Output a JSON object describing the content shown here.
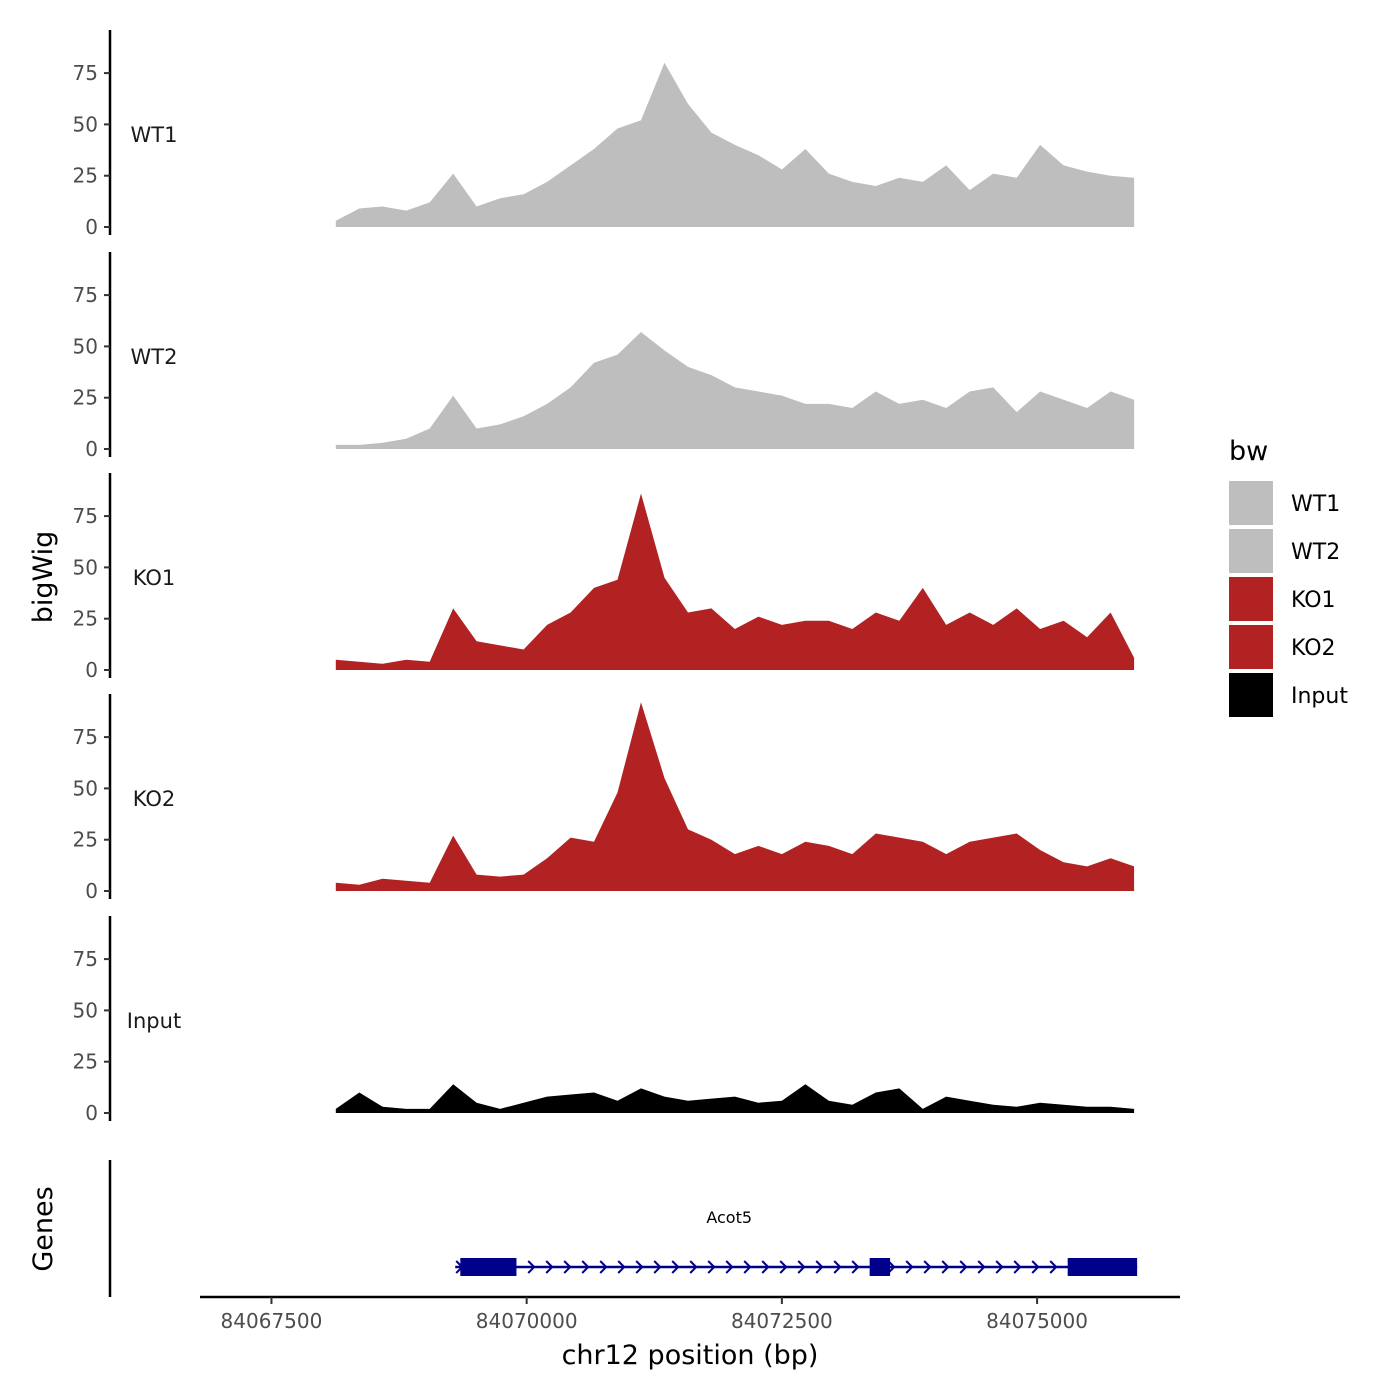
{
  "chart_data": {
    "type": "area",
    "ylabel": "bigWig",
    "xlabel": "chr12 position (bp)",
    "xlim": [
      84066800,
      84076400
    ],
    "ylim": [
      0,
      96
    ],
    "y_ticks": [
      0,
      25,
      50,
      75
    ],
    "x_ticks": [
      84067500,
      84070000,
      84072500,
      84075000
    ],
    "x_tick_labels": [
      "84067500",
      "84070000",
      "84072500",
      "84075000"
    ],
    "legend": {
      "title": "bw",
      "position": "right",
      "entries": [
        {
          "label": "WT1",
          "color": "#bebebe"
        },
        {
          "label": "WT2",
          "color": "#bebebe"
        },
        {
          "label": "KO1",
          "color": "#b22222"
        },
        {
          "label": "KO2",
          "color": "#b22222"
        },
        {
          "label": "Input",
          "color": "#000000"
        }
      ]
    },
    "x": [
      84068130,
      84068360,
      84068590,
      84068820,
      84069050,
      84069280,
      84069510,
      84069740,
      84069970,
      84070200,
      84070430,
      84070660,
      84070890,
      84071120,
      84071350,
      84071580,
      84071810,
      84072040,
      84072270,
      84072500,
      84072730,
      84072960,
      84073190,
      84073420,
      84073650,
      84073880,
      84074110,
      84074340,
      84074570,
      84074800,
      84075030,
      84075260,
      84075490,
      84075720,
      84075950
    ],
    "series": [
      {
        "name": "WT1",
        "color": "#bebebe",
        "values": [
          3,
          9,
          10,
          8,
          12,
          26,
          10,
          14,
          16,
          22,
          30,
          38,
          48,
          52,
          80,
          60,
          46,
          40,
          35,
          28,
          38,
          26,
          22,
          20,
          24,
          22,
          30,
          18,
          26,
          24,
          40,
          30,
          27,
          25,
          24
        ]
      },
      {
        "name": "WT2",
        "color": "#bebebe",
        "values": [
          2,
          2,
          3,
          5,
          10,
          26,
          10,
          12,
          16,
          22,
          30,
          42,
          46,
          57,
          48,
          40,
          36,
          30,
          28,
          26,
          22,
          22,
          20,
          28,
          22,
          24,
          20,
          28,
          30,
          18,
          28,
          24,
          20,
          28,
          24
        ]
      },
      {
        "name": "KO1",
        "color": "#b22222",
        "values": [
          5,
          4,
          3,
          5,
          4,
          30,
          14,
          12,
          10,
          22,
          28,
          40,
          44,
          86,
          45,
          28,
          30,
          20,
          26,
          22,
          24,
          24,
          20,
          28,
          24,
          40,
          22,
          28,
          22,
          30,
          20,
          24,
          16,
          28,
          6
        ]
      },
      {
        "name": "KO2",
        "color": "#b22222",
        "values": [
          4,
          3,
          6,
          5,
          4,
          27,
          8,
          7,
          8,
          16,
          26,
          24,
          48,
          92,
          55,
          30,
          25,
          18,
          22,
          18,
          24,
          22,
          18,
          28,
          26,
          24,
          18,
          24,
          26,
          28,
          20,
          14,
          12,
          16,
          12
        ]
      },
      {
        "name": "Input",
        "color": "#000000",
        "values": [
          2,
          10,
          3,
          2,
          2,
          14,
          5,
          2,
          5,
          8,
          9,
          10,
          6,
          12,
          8,
          6,
          7,
          8,
          5,
          6,
          14,
          6,
          4,
          10,
          12,
          2,
          8,
          6,
          4,
          3,
          5,
          4,
          3,
          3,
          2
        ]
      }
    ],
    "gene_track": {
      "label": "Genes",
      "gene_name": "Acot5",
      "strand": "+",
      "start": 84069300,
      "end": 84075980,
      "exons": [
        [
          84069350,
          84069900
        ],
        [
          84073360,
          84073560
        ],
        [
          84075300,
          84075980
        ]
      ],
      "color": "#00008b"
    }
  }
}
